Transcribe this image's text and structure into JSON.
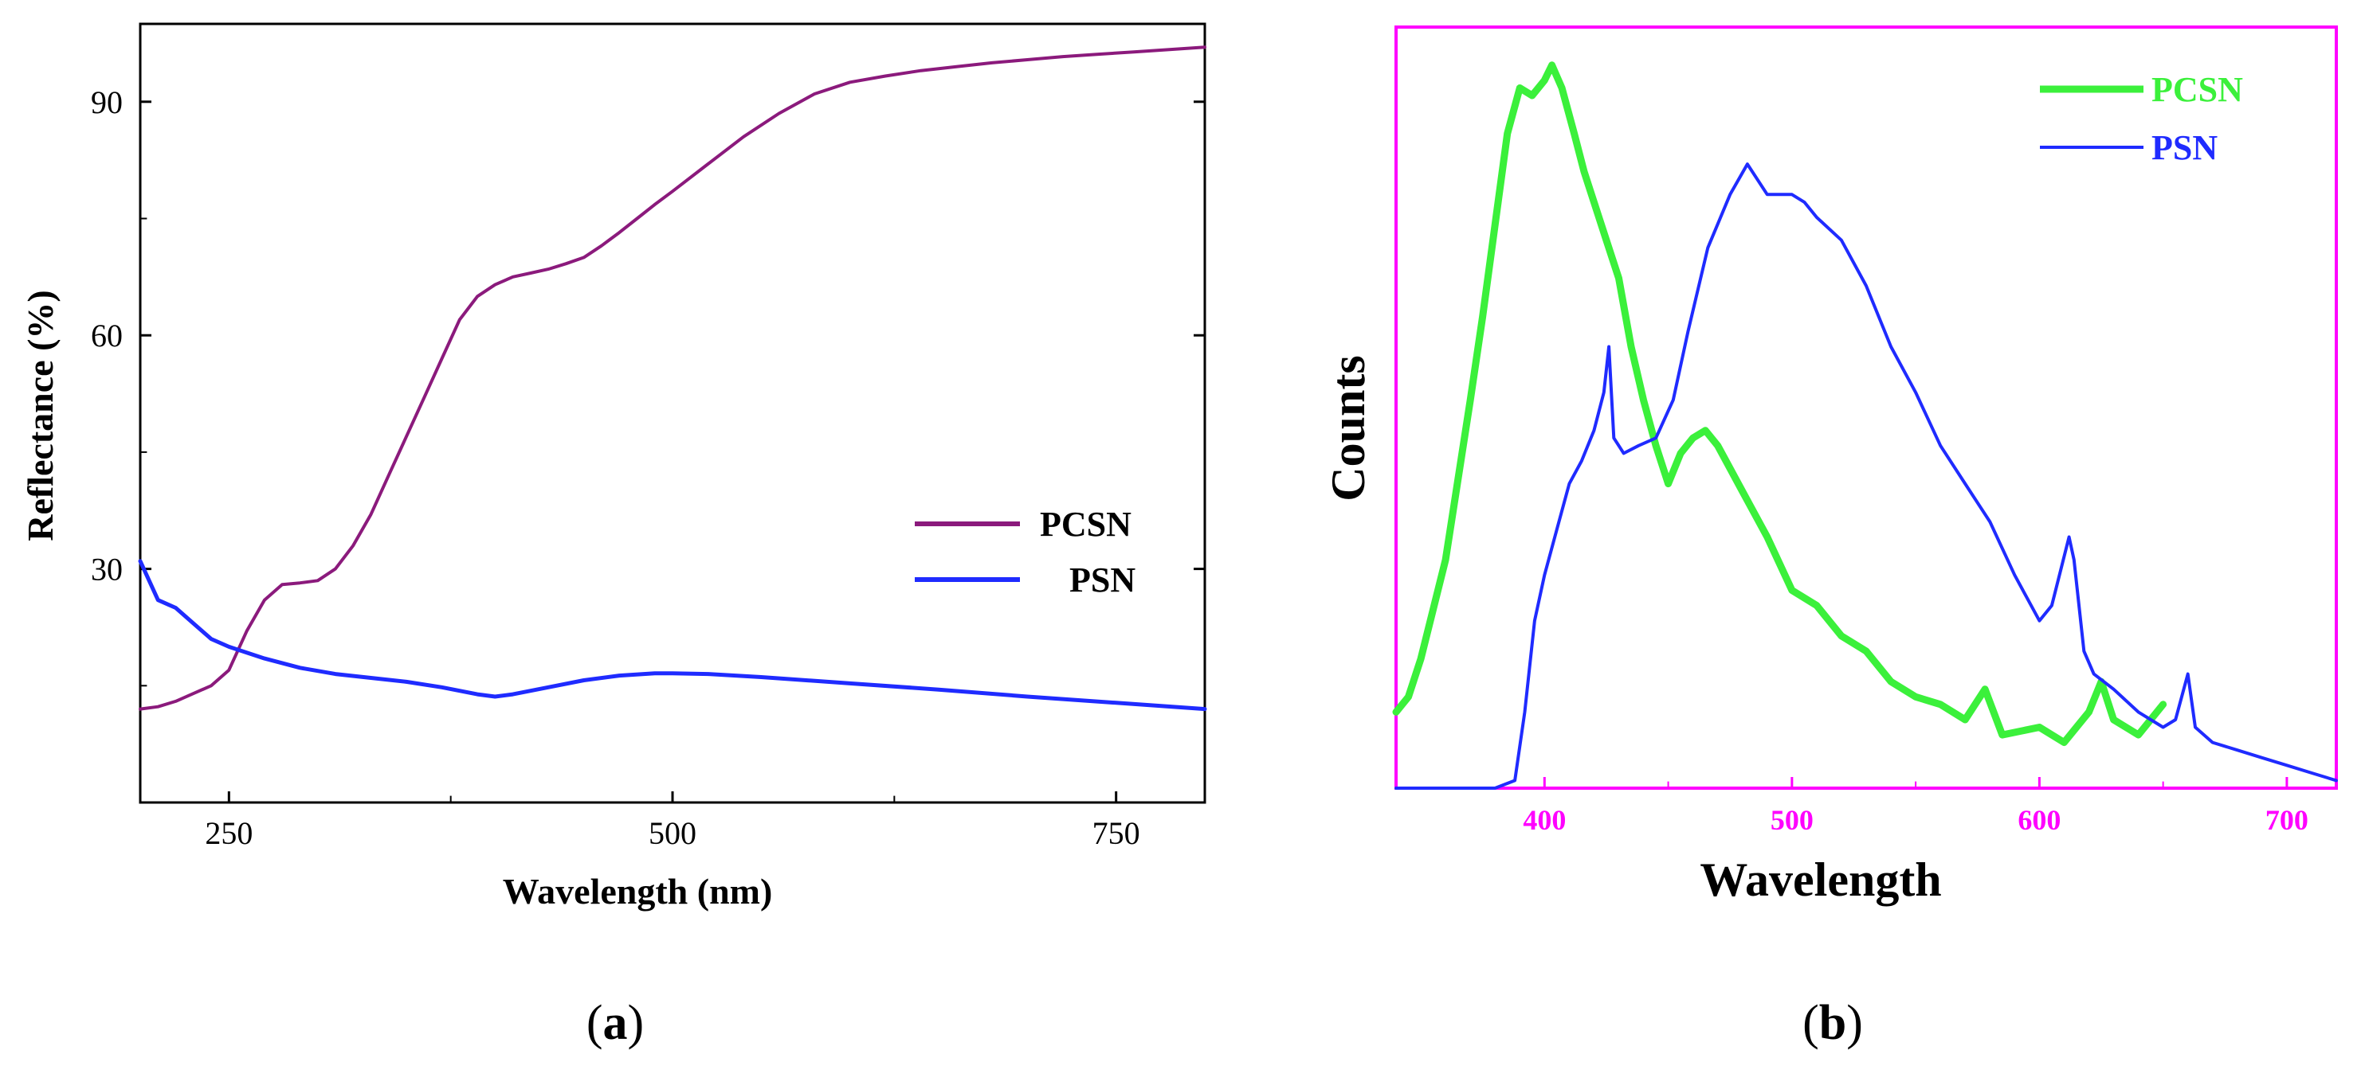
{
  "chart_data": [
    {
      "id": "a",
      "type": "line",
      "panel_label": "(a)",
      "panel_letter": "a",
      "xlabel": "Wavelength (nm)",
      "ylabel": "Reflectance (%)",
      "xlim": [
        200,
        800
      ],
      "ylim": [
        0,
        100
      ],
      "xticks": [
        250,
        500,
        750
      ],
      "yticks": [
        30,
        60,
        90
      ],
      "xtick_labels": [
        "250",
        "500",
        "750"
      ],
      "ytick_labels": [
        "30",
        "60",
        "90"
      ],
      "legend_position": "middle-right",
      "frame_color": "#000000",
      "series": [
        {
          "name": "PCSN",
          "color": "#8B1A7C",
          "x": [
            200,
            210,
            220,
            230,
            240,
            250,
            260,
            270,
            280,
            290,
            300,
            310,
            320,
            330,
            340,
            350,
            360,
            370,
            380,
            390,
            400,
            410,
            420,
            430,
            440,
            450,
            460,
            470,
            480,
            490,
            500,
            520,
            540,
            560,
            580,
            600,
            620,
            640,
            660,
            680,
            700,
            720,
            740,
            760,
            780,
            800
          ],
          "values": [
            12,
            12.3,
            13,
            14,
            15,
            17,
            22,
            26,
            28,
            28.2,
            28.5,
            30,
            33,
            37,
            42,
            47,
            52,
            57,
            62,
            65,
            66.5,
            67.5,
            68,
            68.5,
            69.2,
            70,
            71.5,
            73.2,
            75,
            76.8,
            78.5,
            82,
            85.5,
            88.5,
            91,
            92.5,
            93.3,
            94,
            94.5,
            95,
            95.4,
            95.8,
            96.1,
            96.4,
            96.7,
            97
          ]
        },
        {
          "name": "PSN",
          "color": "#1F2BFF",
          "x": [
            200,
            210,
            220,
            230,
            240,
            250,
            270,
            290,
            310,
            330,
            350,
            370,
            390,
            400,
            410,
            430,
            450,
            470,
            490,
            500,
            520,
            550,
            600,
            650,
            700,
            750,
            800
          ],
          "values": [
            31,
            26,
            25,
            23,
            21,
            20,
            18.5,
            17.3,
            16.5,
            16,
            15.5,
            14.8,
            13.9,
            13.6,
            13.9,
            14.8,
            15.7,
            16.3,
            16.6,
            16.6,
            16.5,
            16.1,
            15.3,
            14.5,
            13.6,
            12.8,
            12
          ]
        }
      ]
    },
    {
      "id": "b",
      "type": "line",
      "panel_label": "(b)",
      "panel_letter": "b",
      "xlabel": "Wavelength",
      "ylabel": "Counts",
      "xlim": [
        340,
        720
      ],
      "ylim": [
        0,
        100
      ],
      "xticks": [
        400,
        500,
        600,
        700
      ],
      "xtick_labels": [
        "400",
        "500",
        "600",
        "700"
      ],
      "yticks": [],
      "legend_position": "top-right",
      "frame_color": "#FF00FF",
      "series": [
        {
          "name": "PCSN",
          "color": "#3BF03B",
          "x": [
            340,
            345,
            350,
            360,
            370,
            375,
            380,
            385,
            390,
            395,
            400,
            403,
            407,
            412,
            416,
            420,
            425,
            430,
            435,
            440,
            445,
            450,
            455,
            460,
            465,
            470,
            480,
            490,
            500,
            510,
            520,
            530,
            540,
            550,
            560,
            570,
            578,
            585,
            600,
            610,
            615,
            620,
            625,
            630,
            640,
            650
          ],
          "values": [
            10,
            12,
            17,
            30,
            51,
            62,
            74,
            86,
            92,
            91,
            93,
            95,
            92,
            86,
            81,
            77,
            72,
            67,
            58,
            51,
            45,
            40,
            44,
            46,
            47,
            45,
            39,
            33,
            26,
            24,
            20,
            18,
            14,
            12,
            11,
            9,
            13,
            7,
            8,
            6,
            8,
            10,
            14,
            9,
            7,
            11
          ]
        },
        {
          "name": "PSN",
          "color": "#1F2BFF",
          "x": [
            340,
            360,
            380,
            388,
            392,
            396,
            400,
            405,
            410,
            415,
            420,
            424,
            426,
            428,
            432,
            438,
            445,
            452,
            458,
            466,
            475,
            482,
            490,
            500,
            505,
            510,
            520,
            530,
            540,
            550,
            560,
            570,
            580,
            590,
            600,
            605,
            612,
            614,
            618,
            622,
            630,
            640,
            650,
            655,
            660,
            663,
            670,
            680,
            690,
            700,
            710,
            720
          ],
          "values": [
            0,
            0,
            0,
            1,
            10,
            22,
            28,
            34,
            40,
            43,
            47,
            52,
            58,
            46,
            44,
            45,
            46,
            51,
            60,
            71,
            78,
            82,
            78,
            78,
            77,
            75,
            72,
            66,
            58,
            52,
            45,
            40,
            35,
            28,
            22,
            24,
            33,
            30,
            18,
            15,
            13,
            10,
            8,
            9,
            15,
            8,
            6,
            5,
            4,
            3,
            2,
            1
          ]
        }
      ]
    }
  ]
}
